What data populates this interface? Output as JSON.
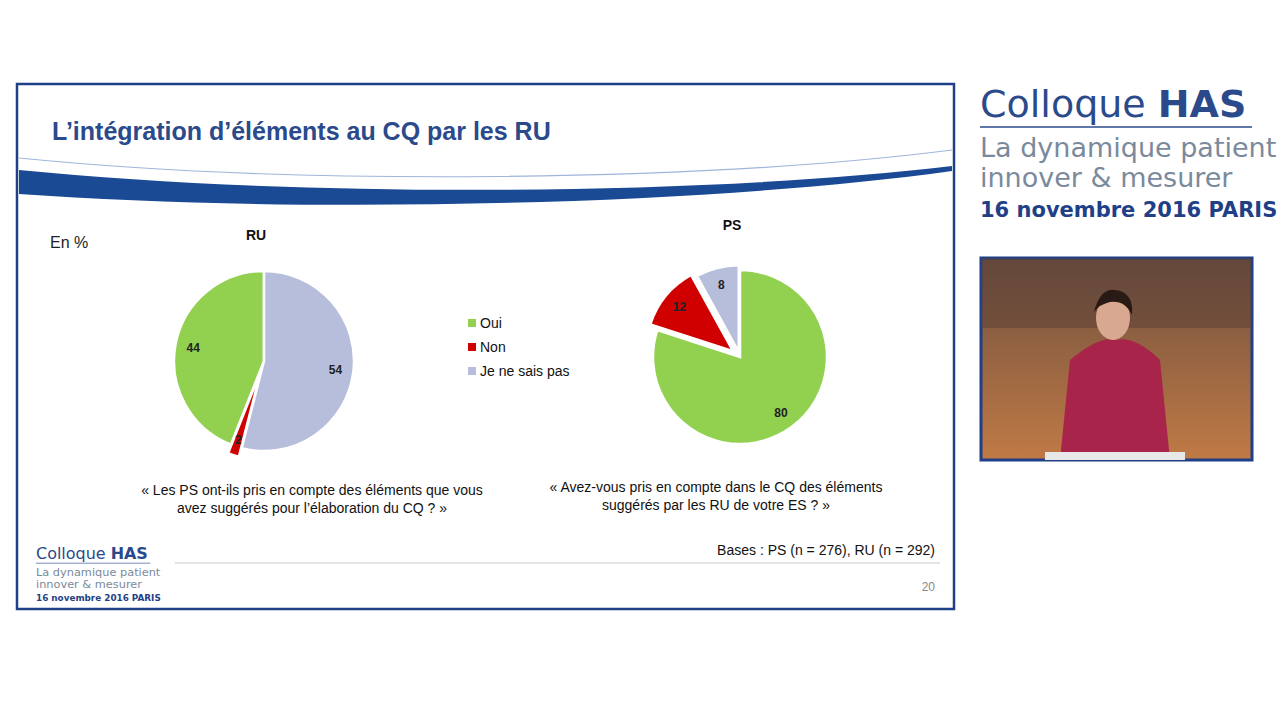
{
  "slide": {
    "title": "L’intégration d’éléments au CQ par les RU",
    "unit_note": "En %",
    "bases": "Bases : PS (n = 276), RU (n = 292)",
    "page_number": "20"
  },
  "branding": {
    "name": "Colloque",
    "brand": "HAS",
    "subtitle_lines": [
      "La dynamique patient",
      "innover & mesurer"
    ],
    "date": "16 novembre 2016 PARIS"
  },
  "chart_data": [
    {
      "type": "pie",
      "title": "RU",
      "categories": [
        "Oui",
        "Non",
        "Je ne sais pas"
      ],
      "values": [
        44,
        2,
        54
      ],
      "colors": [
        "#92d050",
        "#d00000",
        "#b7bedb"
      ],
      "data_labels": true,
      "legend": "center",
      "annotations": [
        "« Les PS ont-ils pris en compte des éléments que vous",
        "avez suggérés pour l’élaboration du CQ ? »"
      ]
    },
    {
      "type": "pie",
      "title": "PS",
      "categories": [
        "Oui",
        "Non",
        "Je ne sais pas"
      ],
      "values": [
        80,
        12,
        8
      ],
      "colors": [
        "#92d050",
        "#d00000",
        "#b7bedb"
      ],
      "data_labels": true,
      "annotations": [
        "« Avez-vous pris en compte dans le CQ des éléments",
        "suggérés par les RU de votre ES ? »"
      ]
    }
  ]
}
